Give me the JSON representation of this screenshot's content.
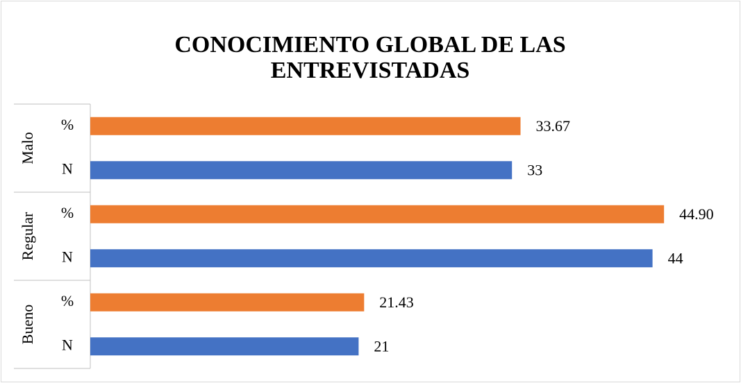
{
  "chart_data": {
    "type": "bar",
    "orientation": "horizontal",
    "title": "CONOCIMIENTO GLOBAL DE LAS ENTREVISTADAS",
    "groups": [
      {
        "name": "Malo",
        "categories": [
          "%",
          "N"
        ],
        "values": [
          33.67,
          33
        ],
        "value_labels": [
          "33.67",
          "33"
        ]
      },
      {
        "name": "Regular",
        "categories": [
          "%",
          "N"
        ],
        "values": [
          44.9,
          44
        ],
        "value_labels": [
          "44.90",
          "44"
        ]
      },
      {
        "name": "Bueno",
        "categories": [
          "%",
          "N"
        ],
        "values": [
          21.43,
          21
        ],
        "value_labels": [
          "21.43",
          "21"
        ]
      }
    ],
    "colors": [
      "#ed7d31",
      "#4472c4"
    ],
    "xlim": [
      0,
      50
    ],
    "grid": false
  }
}
